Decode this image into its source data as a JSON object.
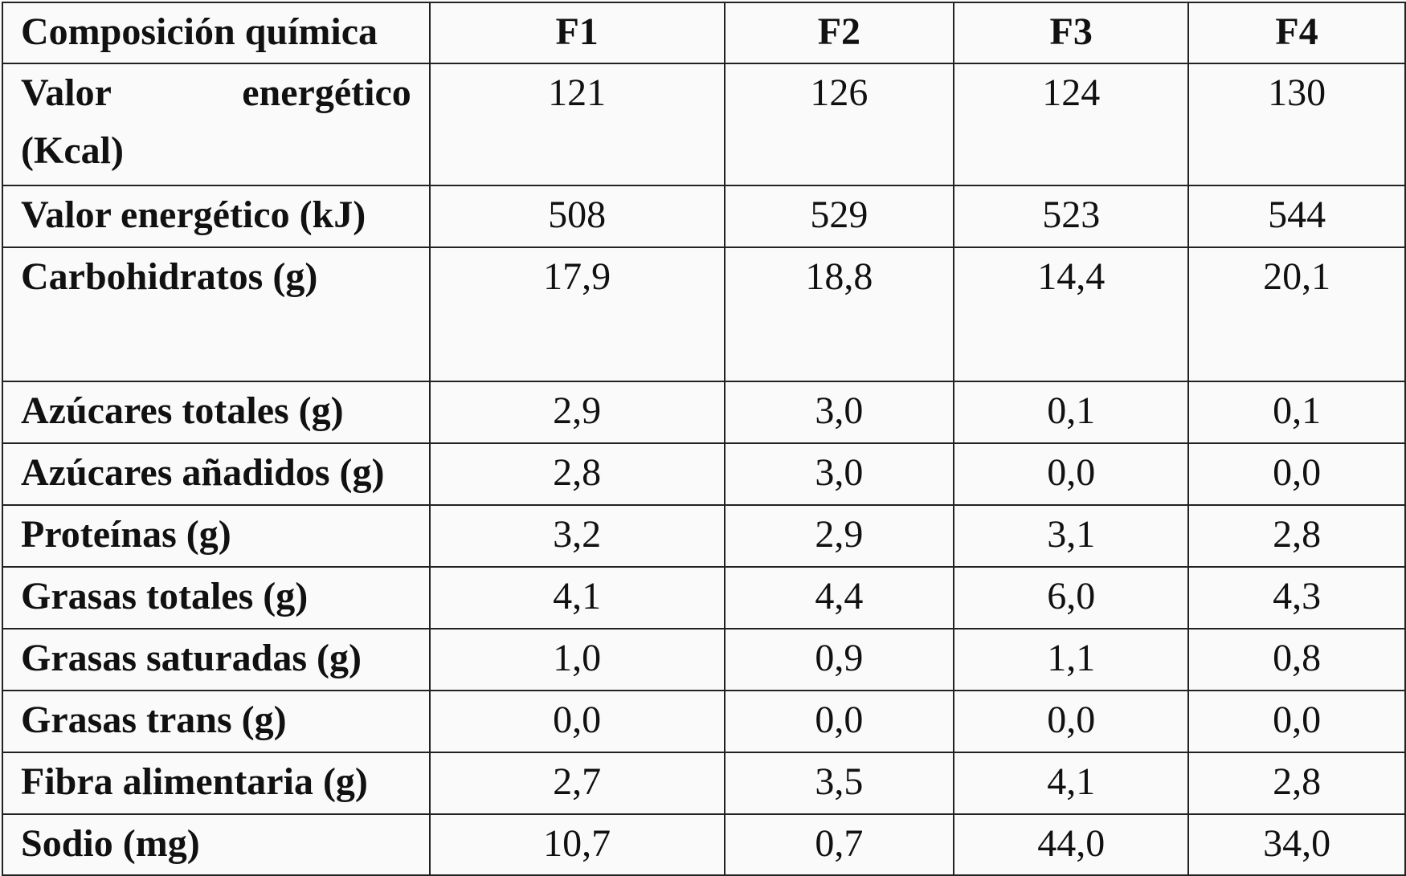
{
  "table": {
    "headers": [
      "Composición química",
      "F1",
      "F2",
      "F3",
      "F4"
    ],
    "rows": [
      {
        "label_line1": "Valor energético",
        "label_line2": "(Kcal)",
        "values": [
          "121",
          "126",
          "124",
          "130"
        ]
      },
      {
        "label": "Valor energético (kJ)",
        "values": [
          "508",
          "529",
          "523",
          "544"
        ]
      },
      {
        "label": "Carbohidratos (g)",
        "values": [
          "17,9",
          "18,8",
          "14,4",
          "20,1"
        ]
      },
      {
        "label": "Azúcares totales (g)",
        "values": [
          "2,9",
          "3,0",
          "0,1",
          "0,1"
        ]
      },
      {
        "label": "Azúcares añadidos (g)",
        "values": [
          "2,8",
          "3,0",
          "0,0",
          "0,0"
        ]
      },
      {
        "label": "Proteínas (g)",
        "values": [
          "3,2",
          "2,9",
          "3,1",
          "2,8"
        ]
      },
      {
        "label": "Grasas totales (g)",
        "values": [
          "4,1",
          "4,4",
          "6,0",
          "4,3"
        ]
      },
      {
        "label": "Grasas saturadas (g)",
        "values": [
          "1,0",
          "0,9",
          "1,1",
          "0,8"
        ]
      },
      {
        "label": "Grasas trans (g)",
        "values": [
          "0,0",
          "0,0",
          "0,0",
          "0,0"
        ]
      },
      {
        "label": "Fibra alimentaria (g)",
        "values": [
          "2,7",
          "3,5",
          "4,1",
          "2,8"
        ]
      },
      {
        "label": "Sodio (mg)",
        "values": [
          "10,7",
          "0,7",
          "44,0",
          "34,0"
        ]
      }
    ]
  }
}
